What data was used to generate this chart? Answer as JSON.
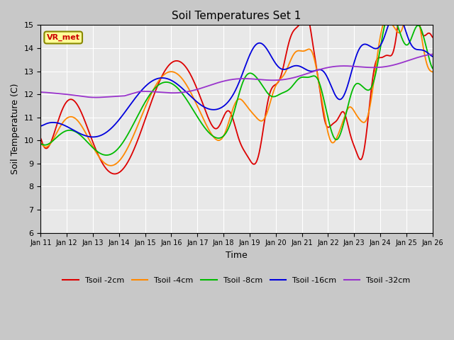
{
  "title": "Soil Temperatures Set 1",
  "xlabel": "Time",
  "ylabel": "Soil Temperature (C)",
  "ylim": [
    6.0,
    15.0
  ],
  "yticks": [
    6.0,
    7.0,
    8.0,
    9.0,
    10.0,
    11.0,
    12.0,
    13.0,
    14.0,
    15.0
  ],
  "xtick_labels": [
    "Jan 11",
    "Jan 12",
    "Jan 13",
    "Jan 14",
    "Jan 15",
    "Jan 16",
    "Jan 17",
    "Jan 18",
    "Jan 19",
    "Jan 20",
    "Jan 21",
    "Jan 22",
    "Jan 23",
    "Jan 24",
    "Jan 25",
    "Jan 26"
  ],
  "annotation_text": "VR_met",
  "annotation_color": "#cc0000",
  "annotation_bg": "#ffff99",
  "colors": {
    "t2": "#dd0000",
    "t4": "#ff8800",
    "t8": "#00bb00",
    "t16": "#0000dd",
    "t32": "#9933cc"
  },
  "fig_bg": "#c8c8c8",
  "plot_bg": "#e8e8e8",
  "grid_color": "#ffffff"
}
